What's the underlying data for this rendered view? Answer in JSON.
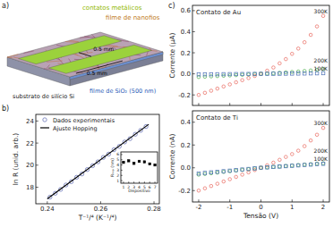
{
  "panels": {
    "a": "a)",
    "b": "b)",
    "c": "c)"
  },
  "diagram": {
    "contacts": "contatos metálicos",
    "film": "filme de nanofios",
    "length_u": "0.5 mm",
    "length_v": "0.5 mm",
    "substrate": "substrato de silício Si",
    "oxide": "filme de SiO₂ (500 nm)"
  },
  "chart_data": [
    {
      "type": "scatter",
      "x_label": "T⁻¹/⁴ (K⁻¹/⁴)",
      "y_label": "ln R (unid. arb.)",
      "legend": "upper-left",
      "xlim": [
        0.2357,
        0.282
      ],
      "xticks": [
        0.24,
        0.26,
        0.28
      ],
      "ylim": [
        16.5,
        24.6
      ],
      "yticks": [
        18,
        20,
        22,
        24
      ],
      "series": [
        {
          "name": "Dados experimentais",
          "type": "scatter",
          "marker": "circle",
          "color": "#5a66b0",
          "x": [
            0.241,
            0.243,
            0.245,
            0.247,
            0.249,
            0.251,
            0.253,
            0.255,
            0.257,
            0.259,
            0.261,
            0.263,
            0.265,
            0.267,
            0.269,
            0.271,
            0.273,
            0.275,
            0.277
          ],
          "values": [
            17.1,
            17.45,
            17.8,
            18.2,
            18.5,
            18.9,
            19.2,
            19.6,
            19.95,
            20.3,
            20.7,
            21.0,
            21.4,
            21.7,
            22.1,
            22.4,
            22.8,
            23.15,
            23.5
          ]
        },
        {
          "name": "Ajuste Hopping",
          "type": "line",
          "line_style": "solid",
          "color": "#000000",
          "x": [
            0.24,
            0.278
          ],
          "values": [
            16.95,
            23.7
          ]
        }
      ]
    },
    {
      "type": "scatter",
      "x_label": "Dispositivo",
      "y_label": "Rₕₒₚ (nm)",
      "xlim": [
        0.5,
        7.5
      ],
      "xticks": [
        1,
        2,
        3,
        4,
        5,
        6,
        7
      ],
      "ylim": [
        0.5,
        6.5
      ],
      "yticks": [
        1,
        2,
        3,
        4,
        5,
        6
      ],
      "series": [
        {
          "name": "Rₕₒₚ",
          "type": "scatter",
          "marker": "square",
          "color": "#000000",
          "x": [
            1,
            2,
            3,
            4,
            5,
            6,
            7
          ],
          "values": [
            4.5,
            4.8,
            4.3,
            4.7,
            4.6,
            4.2,
            4.0
          ]
        }
      ]
    },
    {
      "type": "line",
      "title": "Contato de Au",
      "y_label": "Corrente (µA)",
      "tick_labels": "y",
      "xlim": [
        -2.2,
        2.2
      ],
      "xticks": [
        -2,
        -1,
        0,
        1,
        2
      ],
      "ylim": [
        -0.3,
        0.65
      ],
      "yticks": [
        -0.2,
        {
          "value": 0,
          "label": "0.0"
        },
        0.2,
        0.4,
        0.6
      ],
      "x": [
        -2,
        -1.8,
        -1.6,
        -1.4,
        -1.2,
        -1,
        -0.8,
        -0.6,
        -0.4,
        -0.2,
        0,
        0.2,
        0.4,
        0.6,
        0.8,
        1,
        1.2,
        1.4,
        1.6,
        1.8,
        2
      ],
      "series": [
        {
          "name": "300K",
          "marker": "circle",
          "color": "#e8665c",
          "values": [
            -0.2,
            -0.18,
            -0.16,
            -0.14,
            -0.12,
            -0.1,
            -0.08,
            -0.06,
            -0.04,
            -0.02,
            0,
            0.03,
            0.06,
            0.1,
            0.14,
            0.19,
            0.24,
            0.3,
            0.37,
            0.45,
            0.55
          ]
        },
        {
          "name": "200K",
          "marker": "circle",
          "color": "#4cae4c",
          "values": [
            -0.03,
            -0.027,
            -0.024,
            -0.021,
            -0.018,
            -0.015,
            -0.012,
            -0.009,
            -0.006,
            -0.003,
            0,
            0.003,
            0.006,
            0.01,
            0.014,
            0.018,
            0.022,
            0.027,
            0.032,
            0.038,
            0.045
          ]
        },
        {
          "name": "100K",
          "marker": "square",
          "color": "#4a6fb5",
          "values": [
            -0.005,
            -0.0045,
            -0.004,
            -0.0035,
            -0.003,
            -0.0025,
            -0.002,
            -0.0015,
            -0.001,
            -0.0005,
            0,
            0.0005,
            0.001,
            0.0015,
            0.002,
            0.0025,
            0.003,
            0.0035,
            0.0045,
            0.005,
            0.006
          ]
        }
      ]
    },
    {
      "type": "line",
      "title": "Contato de Ti",
      "x_label": "Tensão (V)",
      "y_label": "Corrente (nA)",
      "xlim": [
        -2.2,
        2.2
      ],
      "xticks": [
        -2,
        -1,
        0,
        1,
        2
      ],
      "ylim": [
        -0.3,
        0.5
      ],
      "yticks": [
        -0.2,
        {
          "value": 0,
          "label": "0.0"
        },
        0.2,
        0.4
      ],
      "x": [
        -2,
        -1.8,
        -1.6,
        -1.4,
        -1.2,
        -1,
        -0.8,
        -0.6,
        -0.4,
        -0.2,
        0,
        0.2,
        0.4,
        0.6,
        0.8,
        1,
        1.2,
        1.4,
        1.6,
        1.8,
        2
      ],
      "series": [
        {
          "name": "300K",
          "marker": "circle",
          "color": "#e8665c",
          "values": [
            -0.2,
            -0.18,
            -0.16,
            -0.14,
            -0.12,
            -0.1,
            -0.08,
            -0.06,
            -0.04,
            -0.02,
            0,
            0.022,
            0.045,
            0.07,
            0.095,
            0.12,
            0.15,
            0.19,
            0.24,
            0.29,
            0.35
          ]
        },
        {
          "name": "200K",
          "marker": "circle",
          "color": "#4cae4c",
          "values": [
            -0.06,
            -0.054,
            -0.048,
            -0.042,
            -0.036,
            -0.03,
            -0.024,
            -0.018,
            -0.012,
            -0.006,
            0,
            0.004,
            0.008,
            0.012,
            0.016,
            0.02,
            0.024,
            0.028,
            0.032,
            0.036,
            0.04
          ]
        },
        {
          "name": "100K",
          "marker": "square",
          "color": "#4a6fb5",
          "values": [
            -0.05,
            -0.045,
            -0.04,
            -0.035,
            -0.03,
            -0.025,
            -0.02,
            -0.015,
            -0.01,
            -0.005,
            0,
            0.0035,
            0.007,
            0.0105,
            0.014,
            0.0175,
            0.021,
            0.0245,
            0.028,
            0.0315,
            0.035
          ]
        }
      ]
    }
  ]
}
